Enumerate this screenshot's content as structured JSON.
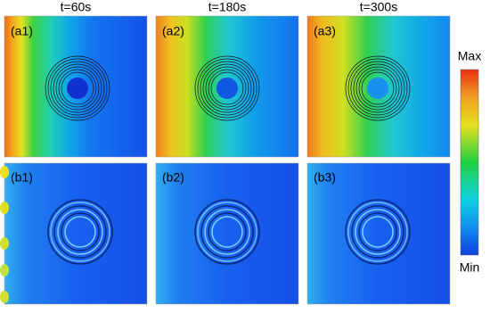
{
  "columns": [
    "t=60s",
    "t=180s",
    "t=300s"
  ],
  "panels": {
    "top": [
      "(a1)",
      "(a2)",
      "(a3)"
    ],
    "bottom": [
      "(b1)",
      "(b2)",
      "(b3)"
    ]
  },
  "colorbar": {
    "max": "Max",
    "min": "Min"
  }
}
